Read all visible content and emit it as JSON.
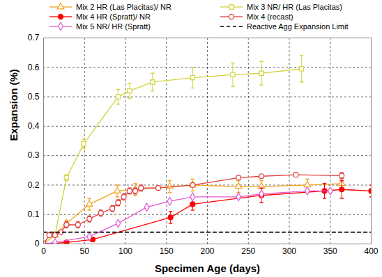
{
  "chart_data": {
    "type": "line",
    "x_label": "Specimen Age (days)",
    "y_label": "Expansion (%)",
    "xlim": [
      0,
      400
    ],
    "xticks": [
      0,
      50,
      100,
      150,
      200,
      250,
      300,
      350,
      400
    ],
    "ylim": [
      0,
      0.7
    ],
    "yticks": [
      0,
      0.1,
      0.2,
      0.3,
      0.4,
      0.5,
      0.6,
      0.7
    ],
    "grid": true,
    "legend": "top",
    "series": [
      {
        "name": "Mix 2 HR (Las Placitas)/ NR",
        "color": "#f5a31a",
        "marker": "triangle-open",
        "line_style": "solid",
        "x": [
          0,
          14,
          28,
          56,
          90,
          112,
          154,
          182,
          238,
          266,
          322,
          364
        ],
        "values": [
          0,
          0.03,
          0.07,
          0.135,
          0.18,
          0.185,
          0.195,
          0.2,
          0.195,
          0.195,
          0.2,
          0.205
        ],
        "errors": [
          0,
          0.005,
          0.01,
          0.02,
          0.02,
          0.02,
          0.02,
          0.02,
          0.02,
          0.02,
          0.02,
          0.02
        ]
      },
      {
        "name": "Mix 3 NR/ HR (Las Placitas)",
        "color": "#d2d23c",
        "marker": "square-open",
        "line_style": "solid",
        "x": [
          0,
          14,
          28,
          49,
          91,
          105,
          133,
          182,
          231,
          266,
          315
        ],
        "values": [
          0,
          0.03,
          0.225,
          0.34,
          0.5,
          0.52,
          0.55,
          0.565,
          0.575,
          0.58,
          0.595
        ],
        "errors": [
          0,
          0.005,
          0.01,
          0.015,
          0.025,
          0.025,
          0.03,
          0.035,
          0.04,
          0.04,
          0.045
        ]
      },
      {
        "name": "Mix 4 HR (Spratt)/ NR",
        "color": "#ff0000",
        "marker": "circle",
        "line_style": "solid",
        "x": [
          0,
          28,
          60,
          155,
          182,
          266,
          343,
          364,
          400
        ],
        "values": [
          0,
          0.005,
          0.015,
          0.09,
          0.135,
          0.165,
          0.18,
          0.185,
          0.18
        ],
        "errors": [
          0,
          0.003,
          0.005,
          0.02,
          0.02,
          0.025,
          0.025,
          0.03,
          0.02
        ]
      },
      {
        "name": "Mix 4 (recast)",
        "color": "#e03c3c",
        "marker": "circle-open",
        "line_style": "solid",
        "x": [
          0,
          7,
          14,
          21,
          28,
          42,
          56,
          70,
          84,
          91,
          98,
          105,
          112,
          119,
          140,
          182,
          238,
          266,
          308,
          364
        ],
        "values": [
          0,
          0.03,
          0.03,
          0.04,
          0.065,
          0.065,
          0.085,
          0.105,
          0.12,
          0.14,
          0.16,
          0.18,
          0.18,
          0.19,
          0.19,
          0.2,
          0.225,
          0.23,
          0.235,
          0.232
        ],
        "errors": [
          0,
          0.005,
          0.005,
          0.005,
          0.01,
          0.01,
          0.01,
          0.01,
          0.01,
          0.01,
          0.01,
          0.01,
          0.01,
          0.01,
          0.005,
          0.005,
          0.005,
          0.005,
          0.005,
          0.01
        ]
      },
      {
        "name": "Mix 5 NR/ HR (Spratt)",
        "color": "#e65ad2",
        "marker": "diamond-open",
        "line_style": "solid",
        "x": [
          0,
          14,
          56,
          91,
          126,
          154,
          182,
          238,
          266,
          322,
          350
        ],
        "values": [
          0,
          0.005,
          0.025,
          0.07,
          0.125,
          0.145,
          0.16,
          0.16,
          0.17,
          0.18,
          0.18
        ],
        "errors": [
          0,
          0.002,
          0.005,
          0.005,
          0.005,
          0.005,
          0.005,
          0.005,
          0.005,
          0.005,
          0.005
        ]
      },
      {
        "name": "Reactive Agg Expansion Limit",
        "color": "#000000",
        "marker": "none",
        "line_style": "dashed",
        "x": [
          0,
          400
        ],
        "values": [
          0.04,
          0.04
        ]
      }
    ]
  }
}
